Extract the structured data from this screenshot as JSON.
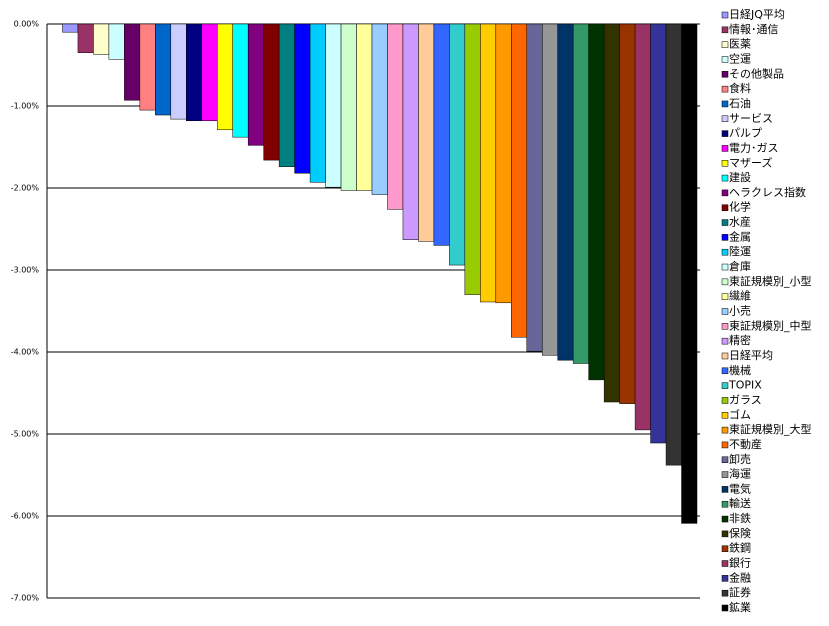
{
  "chart_data": {
    "type": "bar",
    "categories": [
      "日経JQ平均",
      "情報･通信",
      "医薬",
      "空運",
      "その他製品",
      "食料",
      "石油",
      "サービス",
      "パルプ",
      "電力･ガス",
      "マザーズ",
      "建設",
      "ヘラクレス指数",
      "化学",
      "水産",
      "金属",
      "陸運",
      "倉庫",
      "東証規模別_小型",
      "繊維",
      "小売",
      "東証規模別_中型",
      "精密",
      "日経平均",
      "機械",
      "TOPIX",
      "ガラス",
      "ゴム",
      "東証規模別_大型",
      "不動産",
      "卸売",
      "海運",
      "電気",
      "輸送",
      "非鉄",
      "保険",
      "鉄鋼",
      "銀行",
      "金融",
      "証券",
      "鉱業"
    ],
    "values": [
      -0.1,
      -0.35,
      -0.37,
      -0.43,
      -0.93,
      -1.05,
      -1.11,
      -1.16,
      -1.18,
      -1.18,
      -1.29,
      -1.38,
      -1.48,
      -1.66,
      -1.74,
      -1.82,
      -1.93,
      -1.99,
      -2.03,
      -2.03,
      -2.08,
      -2.26,
      -2.63,
      -2.65,
      -2.7,
      -2.94,
      -3.3,
      -3.39,
      -3.4,
      -3.82,
      -3.99,
      -4.04,
      -4.1,
      -4.14,
      -4.34,
      -4.61,
      -4.63,
      -4.95,
      -5.11,
      -5.38,
      -6.09
    ],
    "colors": [
      "#9999ff",
      "#993366",
      "#ffffcc",
      "#ccffff",
      "#660066",
      "#ff8080",
      "#0066cc",
      "#ccccff",
      "#000080",
      "#ff00ff",
      "#ffff00",
      "#00ffff",
      "#800080",
      "#800000",
      "#008080",
      "#0000ff",
      "#00ccff",
      "#ccffff",
      "#ccffcc",
      "#ffff99",
      "#99ccff",
      "#ff99cc",
      "#cc99ff",
      "#ffcc99",
      "#3366ff",
      "#33cccc",
      "#99cc00",
      "#ffcc00",
      "#ff9900",
      "#ff6600",
      "#666699",
      "#969696",
      "#003366",
      "#339966",
      "#003300",
      "#333300",
      "#993300",
      "#993366",
      "#333399",
      "#333333",
      "#000000"
    ],
    "ylim": [
      -7,
      0
    ],
    "yticks": [
      {
        "value": 0,
        "label": "0.00%"
      },
      {
        "value": -1,
        "label": "-1.00%"
      },
      {
        "value": -2,
        "label": "-2.00%"
      },
      {
        "value": -3,
        "label": "-3.00%"
      },
      {
        "value": -4,
        "label": "-4.00%"
      },
      {
        "value": -5,
        "label": "-5.00%"
      },
      {
        "value": -6,
        "label": "-6.00%"
      },
      {
        "value": -7,
        "label": "-7.00%"
      }
    ],
    "grid": true,
    "legend": "right"
  }
}
